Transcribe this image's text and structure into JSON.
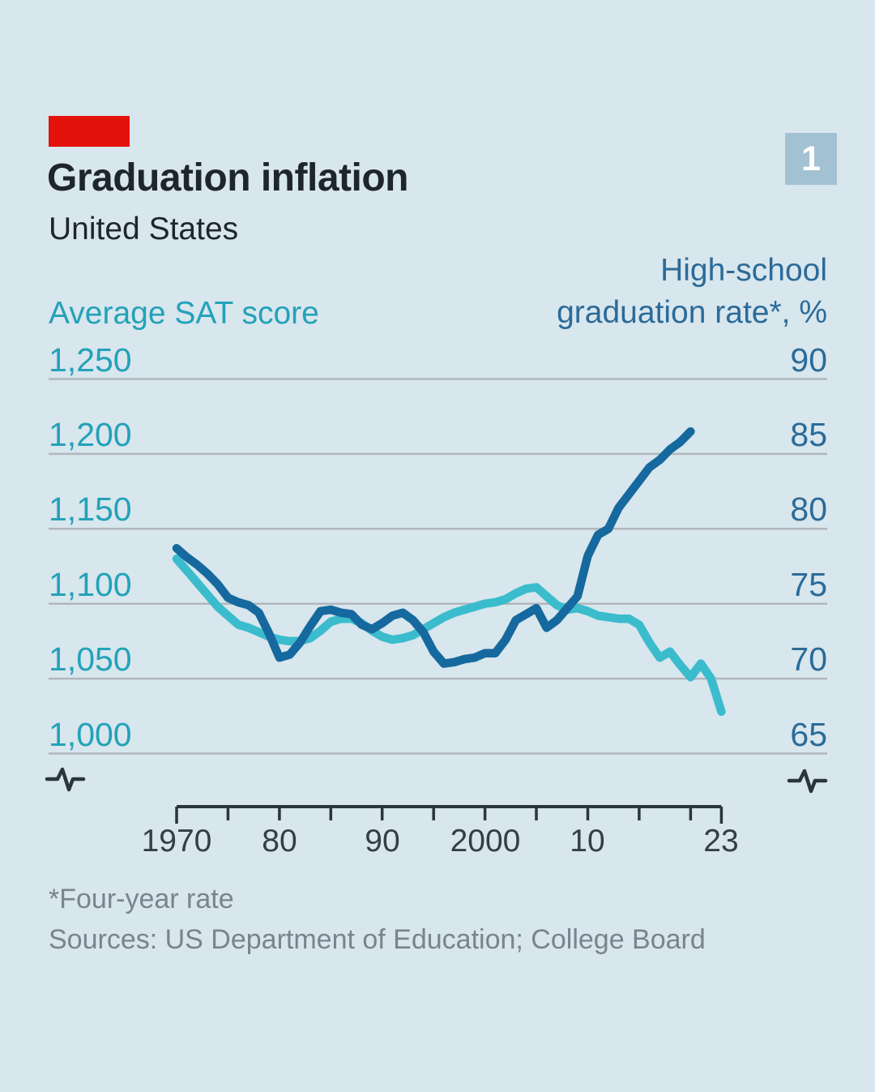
{
  "header": {
    "title": "Graduation inflation",
    "subtitle": "United States",
    "badge": "1"
  },
  "axes": {
    "left_series_label": "Average SAT score",
    "right_series_label_line1": "High-school",
    "right_series_label_line2": "graduation rate*, %",
    "left_ticks": [
      "1,250",
      "1,200",
      "1,150",
      "1,100",
      "1,050",
      "1,000"
    ],
    "right_ticks": [
      "90",
      "85",
      "80",
      "75",
      "70",
      "65"
    ],
    "x_tick_labels": [
      "1970",
      "80",
      "90",
      "2000",
      "10",
      "23"
    ]
  },
  "footer": {
    "footnote": "*Four-year rate",
    "sources": "Sources: US Department of Education; College Board"
  },
  "colors": {
    "background": "#d8e6ed",
    "red_tag": "#e3120b",
    "sat_line": "#3abccd",
    "sat_text": "#23a2b9",
    "rate_line": "#15699e",
    "rate_text": "#2b6b99",
    "gridline": "#b1b7bc",
    "axis": "#2b353d",
    "badge_bg": "#a2c1d3",
    "badge_text": "#ffffff",
    "title_text": "#1e252b",
    "footer_text": "#79848d"
  },
  "chart_data": {
    "type": "line",
    "title": "Graduation inflation",
    "subtitle": "United States",
    "grid": true,
    "legend_position": "labels-above-axes",
    "left_axis": {
      "label": "Average SAT score",
      "min": 1000,
      "max": 1250,
      "tick_step": 50,
      "ticks": [
        1250,
        1200,
        1150,
        1100,
        1050,
        1000
      ]
    },
    "right_axis": {
      "label": "High-school graduation rate*, %",
      "min": 65,
      "max": 90,
      "tick_step": 5,
      "ticks": [
        90,
        85,
        80,
        75,
        70,
        65
      ]
    },
    "x_axis": {
      "start": 1970,
      "end": 2023,
      "axis_break": true,
      "tick_years": [
        1970,
        1975,
        1980,
        1985,
        1990,
        1995,
        2000,
        2005,
        2010,
        2015,
        2020,
        2023
      ],
      "labeled_ticks": [
        {
          "year": 1970,
          "label": "1970"
        },
        {
          "year": 1980,
          "label": "80"
        },
        {
          "year": 1990,
          "label": "90"
        },
        {
          "year": 2000,
          "label": "2000"
        },
        {
          "year": 2010,
          "label": "10"
        },
        {
          "year": 2023,
          "label": "23"
        }
      ]
    },
    "series": [
      {
        "name": "Average SAT score",
        "axis": "left",
        "color": "#3abccd",
        "years": [
          1970,
          1971,
          1972,
          1973,
          1974,
          1975,
          1976,
          1977,
          1978,
          1979,
          1980,
          1981,
          1982,
          1983,
          1984,
          1985,
          1986,
          1987,
          1988,
          1989,
          1990,
          1991,
          1992,
          1993,
          1994,
          1995,
          1996,
          1997,
          1998,
          1999,
          2000,
          2001,
          2002,
          2003,
          2004,
          2005,
          2006,
          2007,
          2008,
          2009,
          2010,
          2011,
          2012,
          2013,
          2014,
          2015,
          2016,
          2017,
          2018,
          2019,
          2020,
          2021,
          2022,
          2023
        ],
        "values": [
          1130,
          1122,
          1114,
          1106,
          1098,
          1092,
          1086,
          1084,
          1081,
          1078,
          1076,
          1075,
          1075,
          1077,
          1082,
          1088,
          1090,
          1090,
          1087,
          1082,
          1078,
          1076,
          1077,
          1079,
          1083,
          1087,
          1091,
          1094,
          1096,
          1098,
          1100,
          1101,
          1103,
          1107,
          1110,
          1111,
          1105,
          1099,
          1096,
          1097,
          1095,
          1092,
          1091,
          1090,
          1090,
          1086,
          1074,
          1064,
          1068,
          1059,
          1051,
          1060,
          1050,
          1028
        ]
      },
      {
        "name": "High-school graduation rate, % (four-year rate)",
        "axis": "right",
        "color": "#15699e",
        "years": [
          1970,
          1971,
          1972,
          1973,
          1974,
          1975,
          1976,
          1977,
          1978,
          1979,
          1980,
          1981,
          1982,
          1983,
          1984,
          1985,
          1986,
          1987,
          1988,
          1989,
          1990,
          1991,
          1992,
          1993,
          1994,
          1995,
          1996,
          1997,
          1998,
          1999,
          2000,
          2001,
          2002,
          2003,
          2004,
          2005,
          2006,
          2007,
          2008,
          2009,
          2010,
          2011,
          2012,
          2013,
          2014,
          2015,
          2016,
          2017,
          2018,
          2019,
          2020
        ],
        "values": [
          78.7,
          78.1,
          77.6,
          77.0,
          76.3,
          75.4,
          75.1,
          74.9,
          74.4,
          73.0,
          71.4,
          71.6,
          72.4,
          73.5,
          74.5,
          74.6,
          74.4,
          74.3,
          73.6,
          73.3,
          73.7,
          74.2,
          74.4,
          73.9,
          73.1,
          71.8,
          71.0,
          71.1,
          71.3,
          71.4,
          71.7,
          71.7,
          72.6,
          73.9,
          74.3,
          74.7,
          73.4,
          73.9,
          74.7,
          75.5,
          78.2,
          79.6,
          80.0,
          81.4,
          82.3,
          83.2,
          84.1,
          84.6,
          85.3,
          85.8,
          86.5
        ]
      }
    ]
  }
}
